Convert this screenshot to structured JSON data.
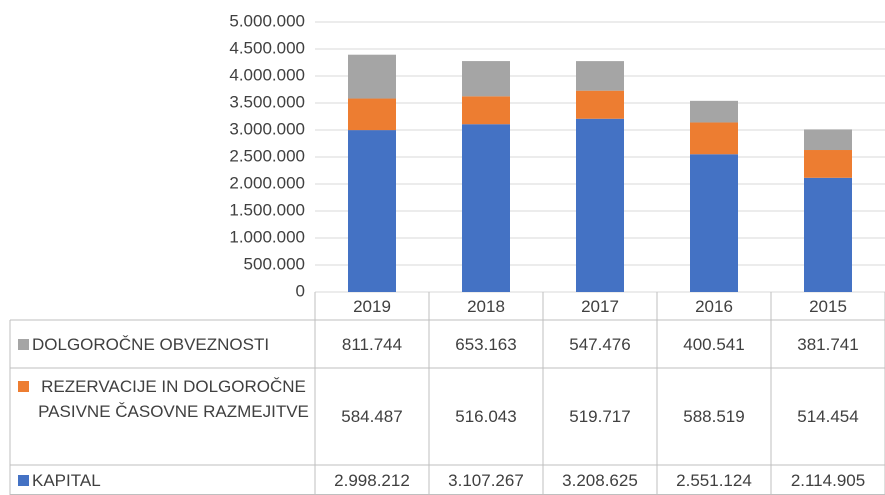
{
  "chart_data": {
    "type": "stacked_bar",
    "categories": [
      "2019",
      "2018",
      "2017",
      "2016",
      "2015"
    ],
    "series": [
      {
        "name": "KAPITAL",
        "color": "#4472c4",
        "values": [
          2998212,
          3107267,
          3208625,
          2551124,
          2114905
        ],
        "value_labels": [
          "2.998.212",
          "3.107.267",
          "3.208.625",
          "2.551.124",
          "2.114.905"
        ]
      },
      {
        "name": "REZERVACIJE IN DOLGOROČNE PASIVNE ČASOVNE RAZMEJITVE",
        "color": "#ed7d31",
        "values": [
          584487,
          516043,
          519717,
          588519,
          514454
        ],
        "value_labels": [
          "584.487",
          "516.043",
          "519.717",
          "588.519",
          "514.454"
        ]
      },
      {
        "name": "DOLGOROČNE OBVEZNOSTI",
        "color": "#a5a5a5",
        "values": [
          811744,
          653163,
          547476,
          400541,
          381741
        ],
        "value_labels": [
          "811.744",
          "653.163",
          "547.476",
          "400.541",
          "381.741"
        ]
      }
    ],
    "ylim": [
      0,
      5000000
    ],
    "yticks": [
      0,
      {
        "value": 500000,
        "label": "500.000"
      },
      {
        "value": 1000000,
        "label": "1.000.000"
      },
      {
        "value": 1500000,
        "label": "1.500.000"
      },
      {
        "value": 2000000,
        "label": "2.000.000"
      },
      {
        "value": 2500000,
        "label": "2.500.000"
      },
      {
        "value": 3000000,
        "label": "3.000.000"
      },
      {
        "value": 3500000,
        "label": "3.500.000"
      },
      {
        "value": 4000000,
        "label": "4.000.000"
      },
      {
        "value": 4500000,
        "label": "4.500.000"
      },
      {
        "value": 5000000,
        "label": "5.000.000"
      }
    ],
    "grid": true,
    "data_table": true
  }
}
